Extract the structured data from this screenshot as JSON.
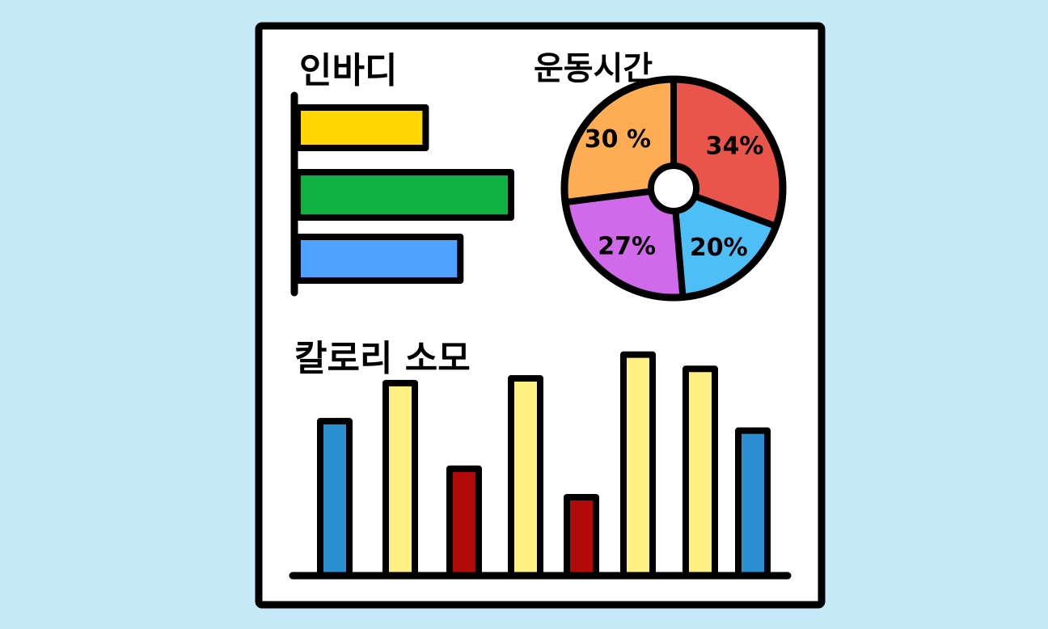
{
  "colors": {
    "background": "#c6e9f8",
    "board": "#ffffff",
    "outline": "#000000"
  },
  "charts": {
    "inbody": {
      "title": "인바디",
      "type": "bar",
      "orientation": "horizontal",
      "values": [
        0.48,
        0.8,
        0.61
      ],
      "colors": [
        "#ffd600",
        "#0fb142",
        "#4fa3ff"
      ]
    },
    "exercise_time": {
      "title": "운동시간",
      "type": "pie",
      "style": "donut",
      "slices": [
        {
          "label": "34%",
          "value": 34,
          "color": "#e9554a"
        },
        {
          "label": "20%",
          "value": 20,
          "color": "#4dbff6"
        },
        {
          "label": "27%",
          "value": 27,
          "color": "#d16aea"
        },
        {
          "label": "30 %",
          "value": 30,
          "color": "#ffad54"
        }
      ]
    },
    "calories": {
      "title": "칼로리 소모",
      "type": "bar",
      "orientation": "vertical",
      "values": [
        0.65,
        0.81,
        0.45,
        0.83,
        0.33,
        0.93,
        0.87,
        0.61
      ],
      "colors": [
        "#2a8ed0",
        "#fff083",
        "#b20a0a",
        "#fff083",
        "#b20a0a",
        "#fff083",
        "#fff083",
        "#2a8ed0"
      ]
    }
  },
  "chart_data": [
    {
      "type": "bar",
      "title": "인바디",
      "values": [
        0.48,
        0.8,
        0.61
      ]
    },
    {
      "type": "pie",
      "title": "운동시간",
      "labels": [
        "34%",
        "20%",
        "27%",
        "30 %"
      ],
      "values": [
        34,
        20,
        27,
        30
      ]
    },
    {
      "type": "bar",
      "title": "칼로리 소모",
      "values": [
        0.65,
        0.81,
        0.45,
        0.83,
        0.33,
        0.93,
        0.87,
        0.61
      ]
    }
  ]
}
